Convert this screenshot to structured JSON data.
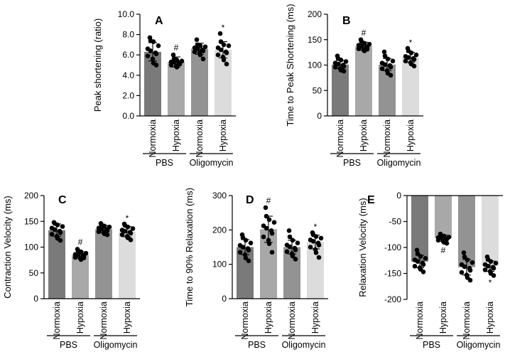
{
  "palette": [
    "#7a7a7a",
    "#a8a8a8",
    "#939393",
    "#dcdcdc"
  ],
  "groups": [
    "PBS",
    "Oligomycin"
  ],
  "chart_data": [
    {
      "id": "A",
      "panel_label": "A",
      "type": "bar",
      "ylabel": "Peak shortening (ratio)",
      "ylim": [
        0,
        10
      ],
      "yticks": [
        "0.0",
        "2.0",
        "4.0",
        "6.0",
        "8.0",
        "10.0"
      ],
      "categories": [
        "Normoxia",
        "Hypoxia",
        "Normoxia",
        "Hypoxia"
      ],
      "values": [
        6.3,
        5.3,
        6.6,
        6.5
      ],
      "errors": [
        0.9,
        0.5,
        0.55,
        0.8
      ],
      "annotations": [
        "",
        "#",
        "",
        "*"
      ],
      "points": [
        [
          7.7,
          7.4,
          7.3,
          6.9,
          6.6,
          6.4,
          6.2,
          6.1,
          5.9,
          5.6,
          5.2,
          5.0
        ],
        [
          6.0,
          5.6,
          5.5,
          5.4,
          5.3,
          5.3,
          5.2,
          5.1,
          5.0,
          4.9,
          4.8,
          5.2
        ],
        [
          7.5,
          7.0,
          6.9,
          6.8,
          6.7,
          6.6,
          6.5,
          6.4,
          6.3,
          6.2,
          6.0,
          5.6
        ],
        [
          8.1,
          7.3,
          7.0,
          6.9,
          6.7,
          6.5,
          6.3,
          6.2,
          6.0,
          5.8,
          5.5,
          5.1
        ]
      ]
    },
    {
      "id": "B",
      "panel_label": "B",
      "type": "bar",
      "ylabel": "Time to Peak Shortening (ms)",
      "ylim": [
        0,
        200
      ],
      "yticks": [
        "0",
        "50",
        "100",
        "150",
        "200"
      ],
      "categories": [
        "Normoxia",
        "Hypoxia",
        "Normoxia",
        "Hypoxia"
      ],
      "values": [
        101,
        137,
        101,
        115
      ],
      "errors": [
        8,
        8,
        12,
        10
      ],
      "annotations": [
        "",
        "#",
        "",
        "*"
      ],
      "points": [
        [
          118,
          113,
          110,
          107,
          104,
          102,
          100,
          98,
          96,
          93,
          90,
          88
        ],
        [
          150,
          146,
          143,
          141,
          139,
          137,
          136,
          134,
          132,
          130,
          128,
          131
        ],
        [
          126,
          118,
          112,
          108,
          104,
          101,
          99,
          96,
          93,
          89,
          84,
          80
        ],
        [
          133,
          128,
          124,
          120,
          117,
          115,
          113,
          111,
          108,
          105,
          102,
          98
        ]
      ]
    },
    {
      "id": "C",
      "panel_label": "C",
      "type": "bar",
      "ylabel": "Contraction Velocity (ms)",
      "ylim": [
        0,
        200
      ],
      "yticks": [
        "0",
        "50",
        "100",
        "150",
        "200"
      ],
      "categories": [
        "Normoxia",
        "Hypoxia",
        "Normoxia",
        "Hypoxia"
      ],
      "values": [
        133,
        85,
        135,
        130
      ],
      "errors": [
        12,
        6,
        7,
        10
      ],
      "annotations": [
        "",
        "#",
        "",
        "*"
      ],
      "points": [
        [
          148,
          146,
          143,
          140,
          137,
          134,
          131,
          128,
          125,
          121,
          117,
          113
        ],
        [
          96,
          93,
          91,
          88,
          86,
          85,
          84,
          82,
          80,
          78,
          76,
          79
        ],
        [
          146,
          143,
          141,
          139,
          137,
          135,
          134,
          132,
          130,
          128,
          126,
          124
        ],
        [
          145,
          142,
          139,
          136,
          133,
          131,
          129,
          127,
          124,
          121,
          118,
          114
        ]
      ]
    },
    {
      "id": "D",
      "panel_label": "D",
      "type": "bar",
      "ylabel": "Time to 90% Relaxation (ms)",
      "ylim": [
        0,
        300
      ],
      "yticks": [
        "0",
        "100",
        "200",
        "300"
      ],
      "categories": [
        "Normoxia",
        "Hypoxia",
        "Normoxia",
        "Hypoxia"
      ],
      "values": [
        150,
        202,
        150,
        165
      ],
      "errors": [
        22,
        38,
        20,
        20
      ],
      "annotations": [
        "",
        "#",
        "",
        "*"
      ],
      "points": [
        [
          186,
          178,
          170,
          162,
          155,
          150,
          146,
          141,
          135,
          128,
          118,
          110
        ],
        [
          265,
          240,
          230,
          222,
          212,
          205,
          198,
          190,
          180,
          170,
          160,
          135
        ],
        [
          198,
          180,
          170,
          162,
          156,
          151,
          147,
          142,
          137,
          131,
          124,
          115
        ],
        [
          192,
          186,
          181,
          176,
          171,
          167,
          162,
          156,
          150,
          143,
          134,
          120
        ]
      ]
    },
    {
      "id": "E",
      "panel_label": "E",
      "type": "bar",
      "ylabel": "Relaxation Velocity (ms)",
      "ylim": [
        -200,
        0
      ],
      "yticks": [
        "0",
        "-50",
        "-100",
        "-150",
        "-200"
      ],
      "categories": [
        "Normoxia",
        "Hypoxia",
        "Normoxia",
        "Hypoxia"
      ],
      "values": [
        -127,
        -82,
        -138,
        -136
      ],
      "errors": [
        12,
        6,
        15,
        10
      ],
      "annotations": [
        "",
        "#",
        "",
        "*"
      ],
      "points": [
        [
          -105,
          -112,
          -117,
          -121,
          -124,
          -127,
          -130,
          -133,
          -136,
          -139,
          -142,
          -147
        ],
        [
          -74,
          -77,
          -78,
          -80,
          -81,
          -82,
          -83,
          -84,
          -86,
          -88,
          -90,
          -92
        ],
        [
          -110,
          -118,
          -124,
          -129,
          -133,
          -137,
          -140,
          -144,
          -148,
          -153,
          -158,
          -163
        ],
        [
          -118,
          -123,
          -127,
          -130,
          -133,
          -136,
          -138,
          -140,
          -143,
          -146,
          -150,
          -154
        ]
      ]
    }
  ]
}
